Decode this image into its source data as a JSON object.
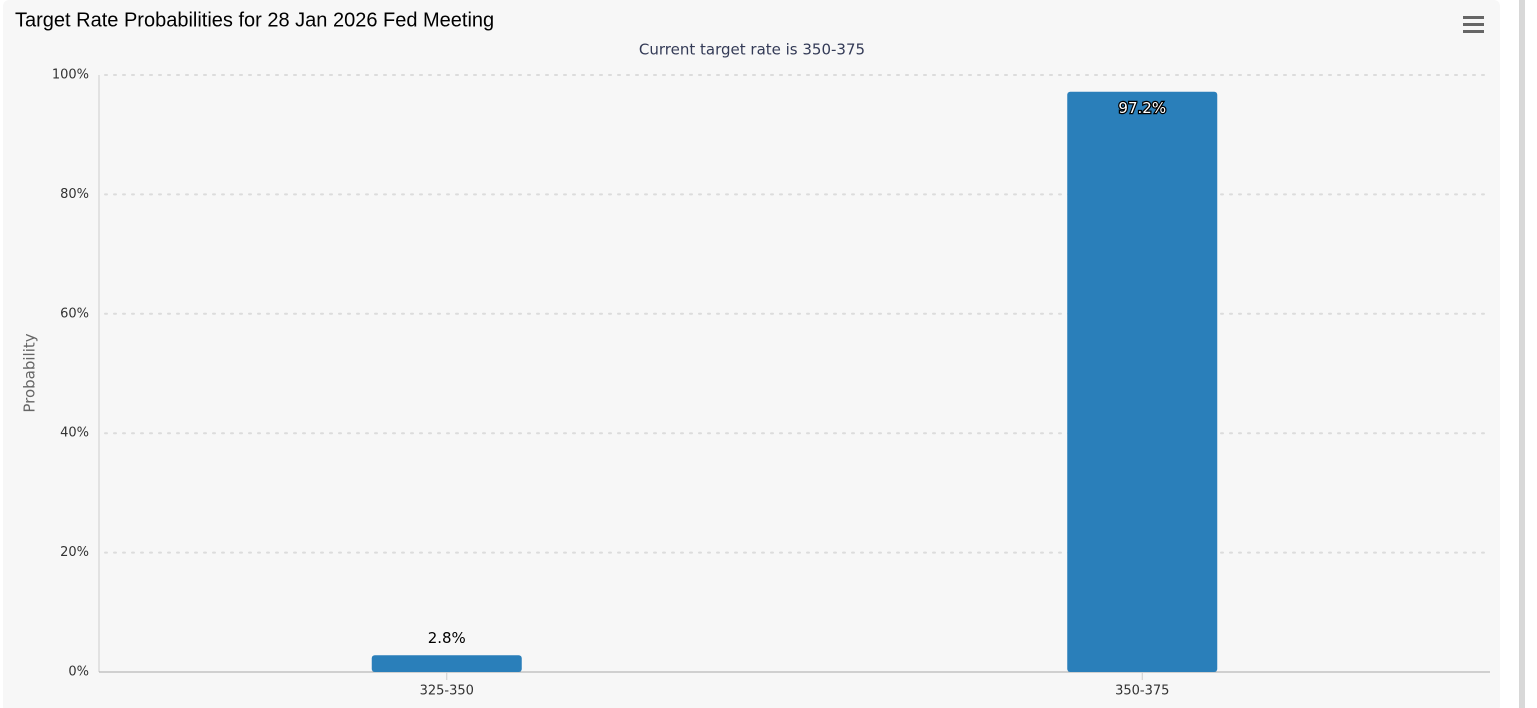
{
  "chart_data": {
    "type": "bar",
    "title": "Target Rate Probabilities for 28 Jan 2026 Fed Meeting",
    "subtitle": "Current target rate is 350-375",
    "y_label": "Probability",
    "categories": [
      "325-350",
      "350-375"
    ],
    "values": [
      2.8,
      97.2
    ],
    "value_labels": [
      "2.8%",
      "97.2%"
    ],
    "color": "#2a7fba",
    "ylim": [
      0,
      100
    ],
    "yticks": [
      {
        "value": 0,
        "label": "0%"
      },
      {
        "value": 20,
        "label": "20%"
      },
      {
        "value": 40,
        "label": "40%"
      },
      {
        "value": 60,
        "label": "60%"
      },
      {
        "value": 80,
        "label": "80%"
      },
      {
        "value": 100,
        "label": "100%"
      }
    ],
    "grid": true
  }
}
